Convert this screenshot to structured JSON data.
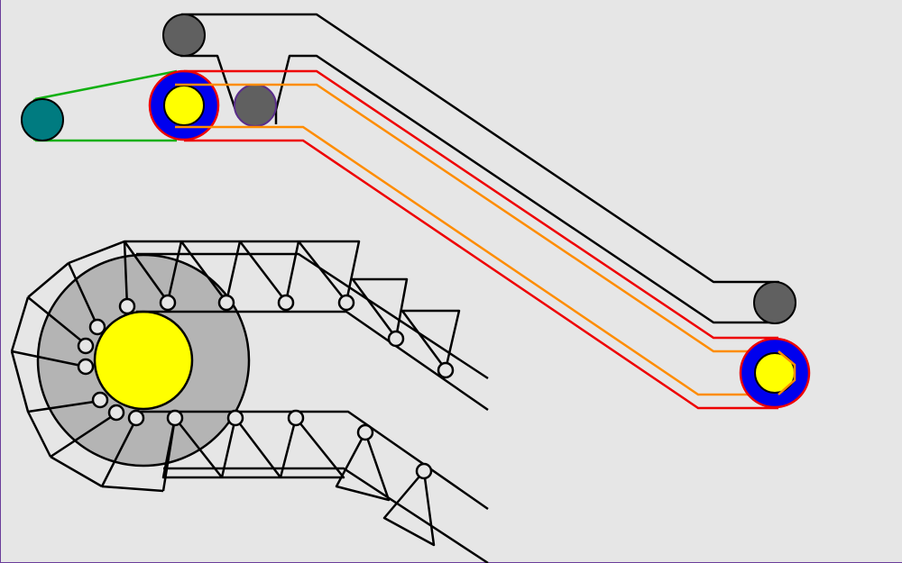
{
  "colors": {
    "background": "#e6e6e6",
    "handrail": "#000000",
    "step_band": "#ee0000",
    "inner_band": "#ff8c00",
    "drive_belt": "#10b010",
    "motor": "#007b80",
    "drive_wheel": "#0000ee",
    "hub": "#ffff00",
    "guide_roller": "#606060",
    "sprocket": "#b4b4b4"
  },
  "diagram": {
    "components": [
      "motor",
      "drive-belt",
      "upper-sprocket",
      "lower-sprocket",
      "handrail",
      "step-chain",
      "step-band",
      "guide-rollers",
      "sprocket-detail"
    ]
  }
}
